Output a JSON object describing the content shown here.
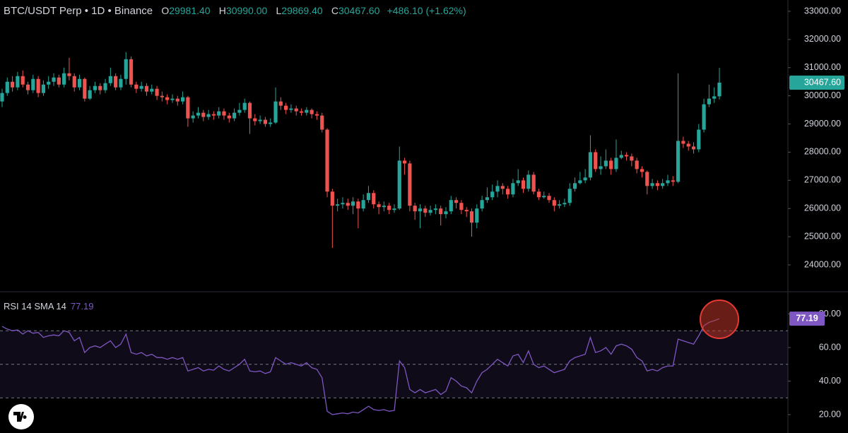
{
  "header": {
    "title": "BTC/USDT Perp • 1D • Binance",
    "o_label": "O",
    "open": "29981.40",
    "h_label": "H",
    "high": "30990.00",
    "l_label": "L",
    "low": "29869.40",
    "c_label": "C",
    "close": "30467.60",
    "change": "+486.10 (+1.62%)"
  },
  "chart_data": [
    {
      "type": "candlestick",
      "up_color": "#26a69a",
      "down_color": "#ef5350",
      "ylim": [
        23047,
        33401
      ],
      "yticks": [
        {
          "value": 33000,
          "label": "33000.00"
        },
        {
          "value": 32000,
          "label": "32000.00"
        },
        {
          "value": 31000,
          "label": "31000.00"
        },
        {
          "value": 30000,
          "label": "30000.00"
        },
        {
          "value": 29000,
          "label": "29000.00"
        },
        {
          "value": 28000,
          "label": "28000.00"
        },
        {
          "value": 27000,
          "label": "27000.00"
        },
        {
          "value": 26000,
          "label": "26000.00"
        },
        {
          "value": 25000,
          "label": "25000.00"
        },
        {
          "value": 24000,
          "label": "24000.00"
        }
      ],
      "open": [
        29800,
        30100,
        30500,
        30300,
        30700,
        30400,
        30200,
        30600,
        30100,
        30400,
        30500,
        30650,
        30400,
        30800,
        30700,
        30300,
        30600,
        29900,
        30200,
        30350,
        30200,
        30450,
        30700,
        30300,
        30600,
        31300,
        30400,
        30250,
        30350,
        30150,
        30250,
        30000,
        29950,
        29850,
        29900,
        29800,
        29950,
        29200,
        29300,
        29400,
        29250,
        29350,
        29300,
        29450,
        29300,
        29200,
        29400,
        29500,
        29750,
        29200,
        29100,
        29150,
        29000,
        29050,
        29800,
        29650,
        29500,
        29550,
        29450,
        29400,
        29500,
        29350,
        29300,
        28800,
        26600,
        26100,
        26150,
        26200,
        26100,
        26250,
        26000,
        26300,
        26550,
        26150,
        26050,
        26100,
        25950,
        26000,
        27700,
        27600,
        26100,
        25900,
        26000,
        25850,
        25950,
        26000,
        25800,
        25900,
        26300,
        26200,
        25950,
        25900,
        25500,
        26000,
        26300,
        26400,
        26600,
        26800,
        26700,
        26500,
        26900,
        27000,
        26700,
        27200,
        26600,
        26400,
        26450,
        26300,
        26100,
        26150,
        26200,
        26700,
        26900,
        27000,
        27100,
        28000,
        27400,
        27500,
        27700,
        27400,
        27800,
        27900,
        27850,
        27700,
        27400,
        27300,
        26800,
        26900,
        26800,
        26900,
        27000,
        26950,
        28400,
        28300,
        28200,
        28100,
        28800,
        29700,
        29900,
        29981.4
      ],
      "high": [
        30250,
        30650,
        30700,
        30850,
        30900,
        30500,
        30750,
        30700,
        30550,
        30700,
        30800,
        30750,
        31000,
        31350,
        30800,
        30750,
        30650,
        30350,
        30500,
        30450,
        30600,
        31000,
        30800,
        30750,
        31550,
        31400,
        30500,
        30500,
        30450,
        30400,
        30350,
        30150,
        30050,
        30050,
        30000,
        30150,
        30000,
        29450,
        29600,
        29500,
        29500,
        29450,
        29600,
        29550,
        29400,
        29550,
        29750,
        29900,
        29800,
        29350,
        29300,
        29250,
        29200,
        30300,
        29950,
        29750,
        29700,
        29650,
        29550,
        29600,
        29550,
        29450,
        29400,
        28850,
        26700,
        26350,
        26400,
        26350,
        26400,
        26350,
        26500,
        26800,
        26650,
        26250,
        26250,
        26200,
        26150,
        28200,
        27800,
        27700,
        26200,
        26150,
        26100,
        26100,
        26150,
        26100,
        26050,
        26450,
        26400,
        26300,
        26050,
        26000,
        26150,
        26450,
        26750,
        26850,
        27000,
        26900,
        26800,
        27050,
        27400,
        27100,
        27350,
        27300,
        26700,
        26600,
        26550,
        26400,
        26300,
        26350,
        26900,
        27100,
        27300,
        27400,
        28600,
        28100,
        27850,
        28100,
        27800,
        28450,
        28050,
        28000,
        27950,
        27800,
        27500,
        27350,
        27050,
        27000,
        27050,
        27200,
        27150,
        30800,
        28550,
        28400,
        28350,
        29000,
        29900,
        30400,
        30300,
        30990
      ],
      "low": [
        29600,
        30000,
        30150,
        30200,
        30300,
        30050,
        30100,
        29950,
        30000,
        30250,
        30350,
        30300,
        30300,
        30550,
        30150,
        30200,
        29800,
        29850,
        30100,
        30050,
        30100,
        30350,
        30200,
        30200,
        30400,
        30300,
        30100,
        30150,
        30000,
        30050,
        29850,
        29800,
        29700,
        29750,
        29650,
        29700,
        28900,
        29050,
        29200,
        29100,
        29150,
        29150,
        29200,
        29150,
        29050,
        29100,
        29300,
        29400,
        28650,
        28950,
        29000,
        28900,
        28900,
        29000,
        29500,
        29350,
        29400,
        29300,
        29300,
        29300,
        29200,
        29150,
        28700,
        26400,
        24600,
        25900,
        26000,
        25950,
        25800,
        25300,
        25900,
        26200,
        26000,
        25800,
        25900,
        25800,
        25850,
        25950,
        27200,
        25900,
        25600,
        25300,
        25700,
        25750,
        25800,
        25400,
        25650,
        25800,
        26000,
        25800,
        25700,
        25000,
        25300,
        25900,
        26200,
        26300,
        26400,
        26500,
        26350,
        26400,
        26800,
        26550,
        26600,
        26500,
        26300,
        26350,
        26200,
        25900,
        26000,
        26050,
        26100,
        26600,
        26850,
        26900,
        27000,
        27300,
        27200,
        27400,
        27200,
        27300,
        27750,
        27700,
        27500,
        27250,
        27100,
        26500,
        26700,
        26650,
        26700,
        26800,
        26800,
        26900,
        28150,
        28050,
        27950,
        28000,
        28700,
        29600,
        29750,
        29869.4
      ],
      "close": [
        30100,
        30500,
        30300,
        30700,
        30400,
        30200,
        30600,
        30100,
        30400,
        30500,
        30650,
        30400,
        30800,
        30700,
        30300,
        30600,
        29900,
        30200,
        30350,
        30200,
        30450,
        30700,
        30300,
        30600,
        31300,
        30400,
        30250,
        30350,
        30150,
        30250,
        30000,
        29950,
        29850,
        29900,
        29800,
        29950,
        29200,
        29300,
        29400,
        29250,
        29350,
        29300,
        29450,
        29300,
        29200,
        29400,
        29500,
        29750,
        29200,
        29100,
        29150,
        29000,
        29050,
        29800,
        29650,
        29500,
        29550,
        29450,
        29400,
        29500,
        29350,
        29300,
        28800,
        26600,
        26100,
        26150,
        26200,
        26100,
        26250,
        26000,
        26300,
        26550,
        26150,
        26050,
        26100,
        25950,
        26000,
        27700,
        27600,
        26100,
        25900,
        26000,
        25850,
        25950,
        26000,
        25800,
        25900,
        26300,
        26200,
        25950,
        25900,
        25500,
        26000,
        26300,
        26400,
        26600,
        26800,
        26700,
        26500,
        26900,
        27000,
        26700,
        27200,
        26600,
        26400,
        26450,
        26300,
        26100,
        26150,
        26200,
        26700,
        26900,
        27000,
        27100,
        28000,
        27400,
        27500,
        27700,
        27400,
        27800,
        27900,
        27850,
        27700,
        27400,
        27300,
        26800,
        26900,
        26800,
        26900,
        27000,
        26950,
        28400,
        28300,
        28200,
        28100,
        28800,
        29700,
        29900,
        29981.4,
        30467.6
      ]
    },
    {
      "type": "line",
      "title": "RSI 14 SMA 14",
      "last_value_label": "77.19",
      "color": "#7e57c2",
      "ylim": [
        9.05,
        93.26
      ],
      "yticks": [
        {
          "value": 80,
          "label": "80.00"
        },
        {
          "value": 60,
          "label": "60.00"
        },
        {
          "value": 40,
          "label": "40.00"
        },
        {
          "value": 20,
          "label": "20.00"
        }
      ],
      "levels": [
        70,
        50,
        30
      ],
      "values": [
        72.6,
        71,
        70,
        70.5,
        68,
        70,
        68.5,
        69,
        66,
        67,
        67.5,
        67,
        70,
        69,
        64,
        66,
        57,
        60,
        61,
        60,
        62,
        64,
        60,
        62,
        68,
        57,
        56,
        57,
        55,
        56,
        54,
        54,
        53,
        54,
        53,
        54,
        46,
        47,
        48,
        46,
        47,
        46.5,
        49,
        47,
        46,
        48,
        50,
        53,
        46,
        45.5,
        46,
        44.5,
        45.5,
        54,
        52,
        50,
        51,
        50,
        49,
        51,
        48,
        47,
        42,
        22,
        20,
        20.5,
        21,
        20.5,
        21.5,
        21,
        23,
        25,
        23,
        22.5,
        23,
        22,
        22.5,
        52,
        48,
        35,
        33,
        35,
        33,
        34,
        35,
        32,
        34,
        42,
        40,
        37,
        36,
        33,
        40,
        45,
        47,
        50,
        53,
        51,
        49,
        55,
        56,
        51,
        58,
        50,
        48,
        49,
        47,
        45,
        46,
        47,
        52,
        54,
        55,
        56,
        66,
        57,
        58,
        60,
        56,
        61,
        62,
        61,
        59,
        54,
        52,
        46,
        47,
        46,
        48,
        49,
        49,
        65,
        64,
        63,
        62,
        67,
        73,
        75,
        76,
        77.19
      ]
    }
  ]
}
